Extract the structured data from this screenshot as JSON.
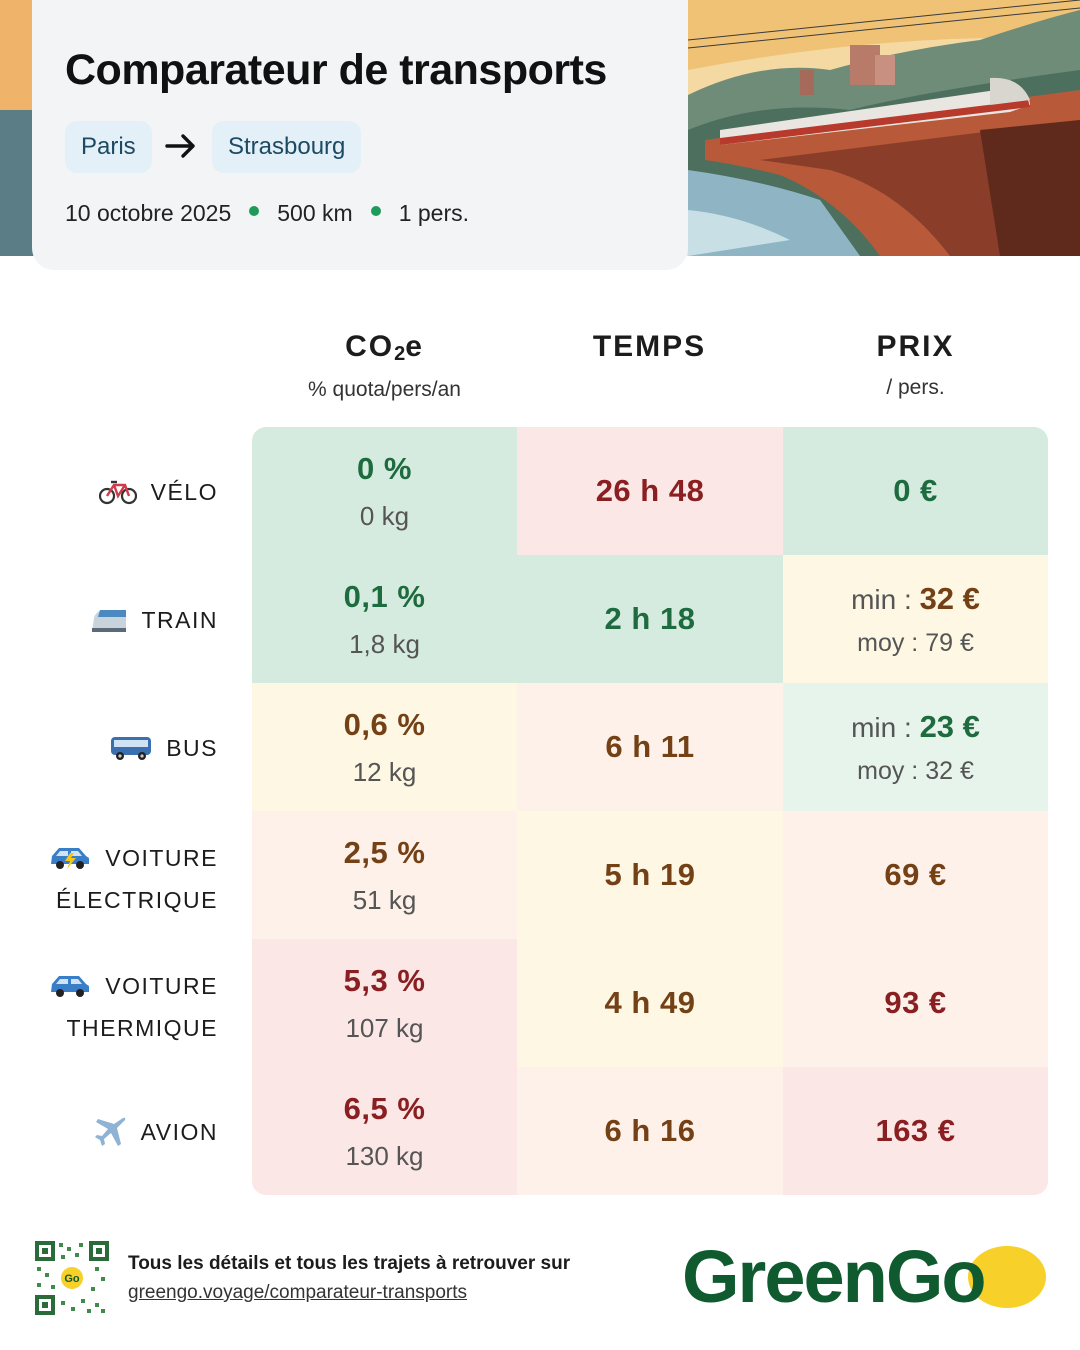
{
  "header": {
    "title": "Comparateur de transports",
    "from": "Paris",
    "to": "Strasbourg",
    "date": "10 octobre 2025",
    "distance": "500 km",
    "persons": "1 pers."
  },
  "columns": [
    {
      "title": "CO",
      "title_sub": "2",
      "title_end": "e",
      "subtitle": "% quota/pers/an"
    },
    {
      "title": "TEMPS",
      "subtitle": ""
    },
    {
      "title": "PRIX",
      "subtitle": "/ pers."
    }
  ],
  "rows": [
    {
      "label": [
        "VÉLO"
      ],
      "icon": "bicycle-icon",
      "co2_pct": "0 %",
      "co2_kg": "0 kg",
      "time": "26 h 48",
      "price": "0 €"
    },
    {
      "label": [
        "TRAIN"
      ],
      "icon": "train-icon",
      "co2_pct": "0,1 %",
      "co2_kg": "1,8 kg",
      "time": "2 h 18",
      "price_min_label": "min : ",
      "price_min": "32 €",
      "price_avg": "moy : 79 €"
    },
    {
      "label": [
        "BUS"
      ],
      "icon": "bus-icon",
      "co2_pct": "0,6 %",
      "co2_kg": "12 kg",
      "time": "6 h 11",
      "price_min_label": "min : ",
      "price_min": "23 €",
      "price_avg": "moy : 32 €"
    },
    {
      "label": [
        "VOITURE",
        "ÉLECTRIQUE"
      ],
      "icon": "electric-car-icon",
      "co2_pct": "2,5 %",
      "co2_kg": "51 kg",
      "time": "5 h 19",
      "price": "69 €"
    },
    {
      "label": [
        "VOITURE",
        "THERMIQUE"
      ],
      "icon": "car-icon",
      "co2_pct": "5,3 %",
      "co2_kg": "107 kg",
      "time": "4 h 49",
      "price": "93 €"
    },
    {
      "label": [
        "AVION"
      ],
      "icon": "airplane-icon",
      "co2_pct": "6,5 %",
      "co2_kg": "130 kg",
      "time": "6 h 16",
      "price": "163 €"
    }
  ],
  "colors": {
    "green_bg": "#d6ebdf",
    "light_green_bg": "#e6f4ec",
    "yellow_bg": "#fdf7e3",
    "orange_bg": "#fdf1e9",
    "red_bg": "#fbe7e5",
    "brand_green": "#0f5b2f",
    "brand_yellow": "#f7d02a"
  },
  "footer": {
    "text": "Tous les détails et tous les trajets à retrouver sur",
    "link": "greengo.voyage/comparateur-transports",
    "qr_label": "Go",
    "logo": "GreenGo"
  }
}
